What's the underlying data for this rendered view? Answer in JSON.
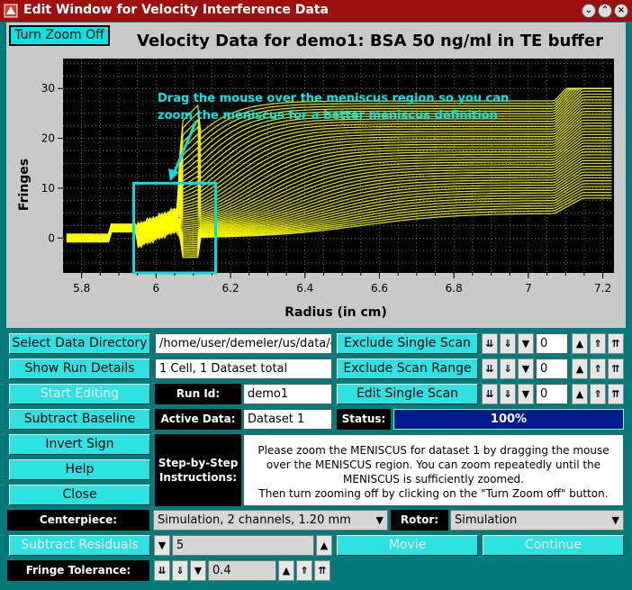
{
  "window": {
    "title": "Edit Window for Velocity Interference Data"
  },
  "plot": {
    "zoom_button": "Turn Zoom Off",
    "title": "Velocity Data for demo1: BSA 50 ng/ml in TE buffer",
    "annotation_line1": "Drag the mouse over the meniscus region so you can",
    "annotation_line2": "zoom the meniscus for a better meniscus definition"
  },
  "chart_data": {
    "type": "line",
    "xlabel": "Radius (in cm)",
    "ylabel": "Fringes",
    "xlim": [
      5.75,
      7.23
    ],
    "ylim": [
      -7,
      36
    ],
    "xticks": [
      "5.8",
      "6",
      "6.2",
      "6.4",
      "6.6",
      "6.8",
      "7",
      "7.2"
    ],
    "yticks": [
      "0",
      "10",
      "20",
      "30"
    ],
    "grid": true,
    "background": "#000000",
    "series_color": "#ffff00",
    "selection_box": {
      "x": [
        5.94,
        6.16
      ],
      "y": [
        -7,
        11
      ]
    }
  },
  "controls": {
    "select_dir": "Select Data Directory",
    "directory": "/home/user/demeler/us/data/c",
    "show_run": "Show Run Details",
    "run_details": "1 Cell, 1 Dataset total",
    "start_editing": "Start Editing",
    "run_id_label": "Run Id:",
    "run_id": "demo1",
    "subtract_baseline": "Subtract Baseline",
    "active_data_label": "Active Data:",
    "active_data": "Dataset 1",
    "invert_sign": "Invert Sign",
    "help": "Help",
    "close": "Close",
    "step_label_1": "Step-by-Step",
    "step_label_2": "Instructions:",
    "instr_1": "Please zoom the MENISCUS for dataset 1 by dragging the mouse",
    "instr_2": "over the MENISCUS region. You can zoom repeatedly until the",
    "instr_3": "MENISCUS is sufficiently zoomed.",
    "instr_4": "Then turn zooming off by clicking on the \"Turn Zoom off\" button.",
    "exclude_single": "Exclude Single Scan",
    "exclude_range": "Exclude Scan Range",
    "edit_single": "Edit Single Scan",
    "counter_1": "0",
    "counter_2": "0",
    "counter_3": "0",
    "status_label": "Status:",
    "status_value": "100%",
    "centerpiece_label": "Centerpiece:",
    "centerpiece_value": "Simulation, 2 channels, 1.20 mm",
    "rotor_label": "Rotor:",
    "rotor_value": "Simulation",
    "subtract_residuals": "Subtract Residuals",
    "residuals_value": "5",
    "movie": "Movie",
    "continue": "Continue",
    "fringe_label": "Fringe Tolerance:",
    "fringe_value": "0.4"
  }
}
